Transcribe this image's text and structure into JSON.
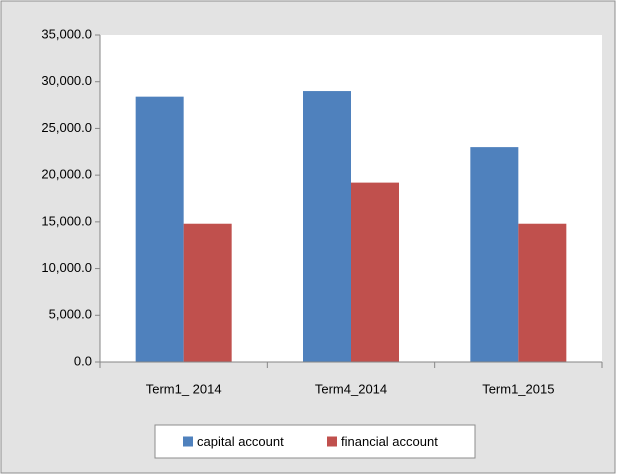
{
  "chart_data": {
    "type": "bar",
    "categories": [
      "Term1_ 2014",
      "Term4_2014",
      "Term1_2015"
    ],
    "series": [
      {
        "name": "capital account",
        "color": "#4f81bd",
        "values": [
          28400,
          29000,
          23000
        ]
      },
      {
        "name": "financial account",
        "color": "#c0504d",
        "values": [
          14800,
          19200,
          14800
        ]
      }
    ],
    "ylim": [
      0,
      35000
    ],
    "yticks": [
      {
        "value": 0,
        "label": "0.0"
      },
      {
        "value": 5000,
        "label": "5,000.0"
      },
      {
        "value": 10000,
        "label": "10,000.0"
      },
      {
        "value": 15000,
        "label": "15,000.0"
      },
      {
        "value": 20000,
        "label": "20,000.0"
      },
      {
        "value": 25000,
        "label": "25,000.0"
      },
      {
        "value": 30000,
        "label": "30,000.0"
      },
      {
        "value": 35000,
        "label": "35,000.0"
      }
    ],
    "grid": false,
    "legend": "bottom"
  }
}
